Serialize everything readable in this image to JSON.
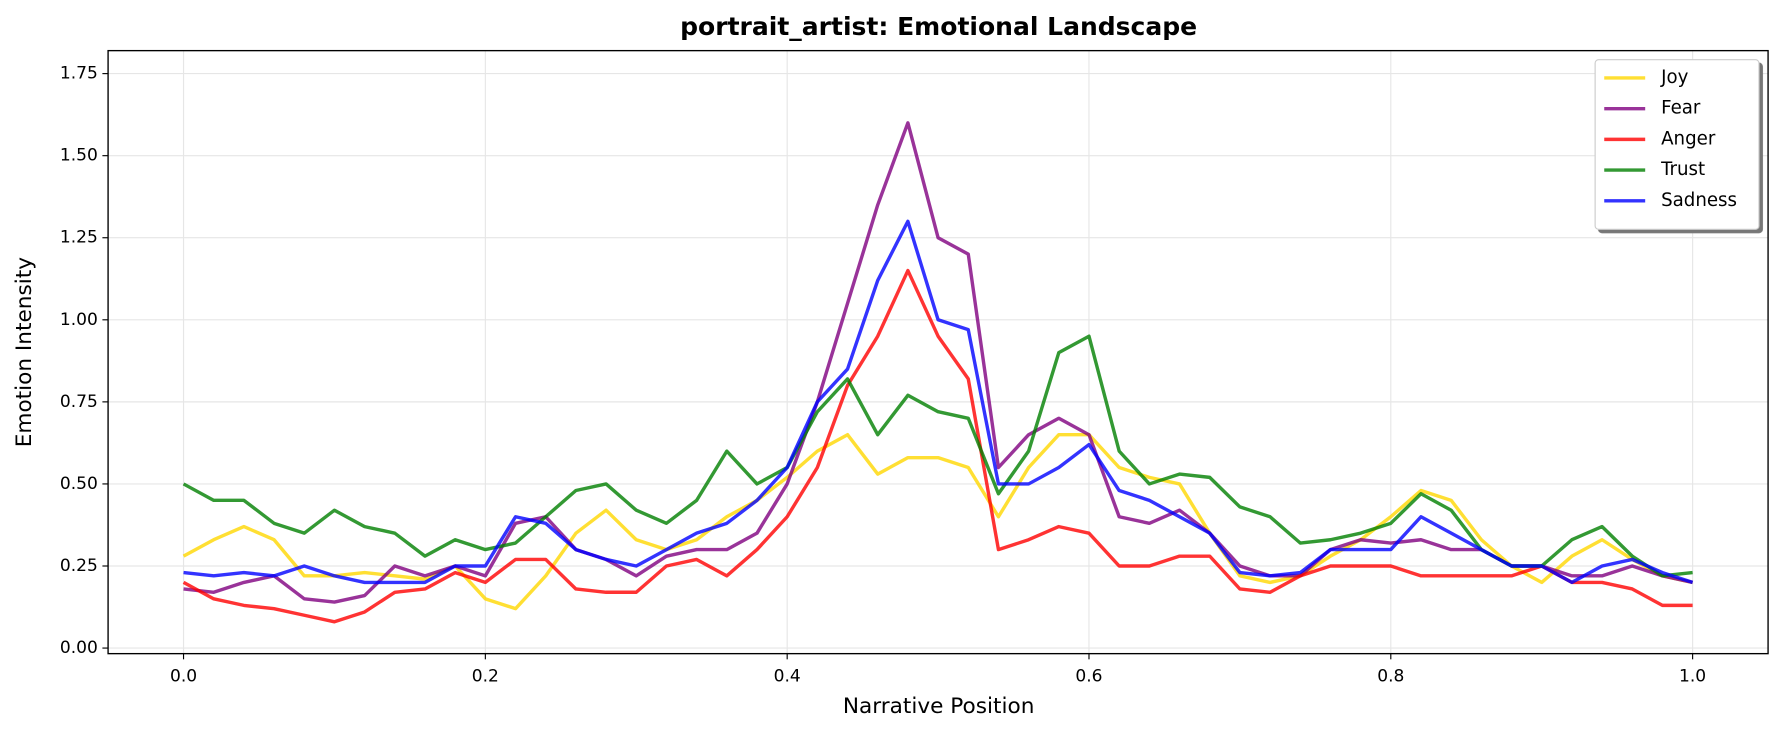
{
  "chart_data": {
    "type": "line",
    "title": "portrait_artist: Emotional Landscape",
    "x_label": "Narrative Position",
    "y_label": "Emotion Intensity",
    "x": [
      0,
      0.02,
      0.04,
      0.06,
      0.08,
      0.1,
      0.12,
      0.14,
      0.16,
      0.18,
      0.2,
      0.22,
      0.24,
      0.26,
      0.28,
      0.3,
      0.32,
      0.34,
      0.36,
      0.38,
      0.4,
      0.42,
      0.44,
      0.46,
      0.48,
      0.5,
      0.52,
      0.54,
      0.56,
      0.58,
      0.6,
      0.62,
      0.64,
      0.66,
      0.68,
      0.7,
      0.72,
      0.74,
      0.76,
      0.78,
      0.8,
      0.82,
      0.84,
      0.86,
      0.88,
      0.9,
      0.92,
      0.94,
      0.96,
      0.98,
      1
    ],
    "series": [
      {
        "name": "Joy",
        "color": "#ffd700",
        "values": [
          0.28,
          0.33,
          0.37,
          0.33,
          0.22,
          0.22,
          0.23,
          0.22,
          0.21,
          0.25,
          0.15,
          0.12,
          0.22,
          0.35,
          0.42,
          0.33,
          0.3,
          0.33,
          0.4,
          0.45,
          0.52,
          0.6,
          0.65,
          0.53,
          0.58,
          0.58,
          0.55,
          0.4,
          0.55,
          0.65,
          0.65,
          0.55,
          0.52,
          0.5,
          0.35,
          0.22,
          0.2,
          0.22,
          0.28,
          0.33,
          0.4,
          0.48,
          0.45,
          0.33,
          0.25,
          0.2,
          0.28,
          0.33,
          0.27,
          0.22,
          0.2
        ]
      },
      {
        "name": "Fear",
        "color": "#800080",
        "values": [
          0.18,
          0.17,
          0.2,
          0.22,
          0.15,
          0.14,
          0.16,
          0.25,
          0.22,
          0.25,
          0.22,
          0.38,
          0.4,
          0.3,
          0.27,
          0.22,
          0.28,
          0.3,
          0.3,
          0.35,
          0.5,
          0.75,
          1.05,
          1.35,
          1.6,
          1.25,
          1.2,
          0.55,
          0.65,
          0.7,
          0.65,
          0.4,
          0.38,
          0.42,
          0.35,
          0.25,
          0.22,
          0.22,
          0.3,
          0.33,
          0.32,
          0.33,
          0.3,
          0.3,
          0.25,
          0.25,
          0.22,
          0.22,
          0.25,
          0.22,
          0.2
        ]
      },
      {
        "name": "Anger",
        "color": "#ff0000",
        "values": [
          0.2,
          0.15,
          0.13,
          0.12,
          0.1,
          0.08,
          0.11,
          0.17,
          0.18,
          0.23,
          0.2,
          0.27,
          0.27,
          0.18,
          0.17,
          0.17,
          0.25,
          0.27,
          0.22,
          0.3,
          0.4,
          0.55,
          0.8,
          0.95,
          1.15,
          0.95,
          0.82,
          0.3,
          0.33,
          0.37,
          0.35,
          0.25,
          0.25,
          0.28,
          0.28,
          0.18,
          0.17,
          0.22,
          0.25,
          0.25,
          0.25,
          0.22,
          0.22,
          0.22,
          0.22,
          0.25,
          0.2,
          0.2,
          0.18,
          0.13,
          0.13
        ]
      },
      {
        "name": "Trust",
        "color": "#008000",
        "values": [
          0.5,
          0.45,
          0.45,
          0.38,
          0.35,
          0.42,
          0.37,
          0.35,
          0.28,
          0.33,
          0.3,
          0.32,
          0.4,
          0.48,
          0.5,
          0.42,
          0.38,
          0.45,
          0.6,
          0.5,
          0.55,
          0.72,
          0.82,
          0.65,
          0.77,
          0.72,
          0.7,
          0.47,
          0.6,
          0.9,
          0.95,
          0.6,
          0.5,
          0.53,
          0.52,
          0.43,
          0.4,
          0.32,
          0.33,
          0.35,
          0.38,
          0.47,
          0.42,
          0.3,
          0.25,
          0.25,
          0.33,
          0.37,
          0.28,
          0.22,
          0.23
        ]
      },
      {
        "name": "Sadness",
        "color": "#0000ff",
        "values": [
          0.23,
          0.22,
          0.23,
          0.22,
          0.25,
          0.22,
          0.2,
          0.2,
          0.2,
          0.25,
          0.25,
          0.4,
          0.38,
          0.3,
          0.27,
          0.25,
          0.3,
          0.35,
          0.38,
          0.45,
          0.55,
          0.75,
          0.85,
          1.12,
          1.3,
          1.0,
          0.97,
          0.5,
          0.5,
          0.55,
          0.62,
          0.48,
          0.45,
          0.4,
          0.35,
          0.23,
          0.22,
          0.23,
          0.3,
          0.3,
          0.3,
          0.4,
          0.35,
          0.3,
          0.25,
          0.25,
          0.2,
          0.25,
          0.27,
          0.23,
          0.2
        ]
      }
    ],
    "xlim": [
      -0.05,
      1.05
    ],
    "ylim": [
      -0.017,
      1.82
    ],
    "xticks": [
      {
        "value": 0,
        "label": "0.0"
      },
      0.2,
      0.4,
      0.6,
      0.8,
      {
        "value": 1,
        "label": "1.0"
      }
    ],
    "yticks": [
      {
        "value": 0,
        "label": "0.00"
      },
      0.25,
      {
        "value": 0.5,
        "label": "0.50"
      },
      0.75,
      {
        "value": 1,
        "label": "1.00"
      },
      1.25,
      {
        "value": 1.5,
        "label": "1.50"
      },
      1.75
    ],
    "grid": true,
    "legend": "upper right"
  }
}
